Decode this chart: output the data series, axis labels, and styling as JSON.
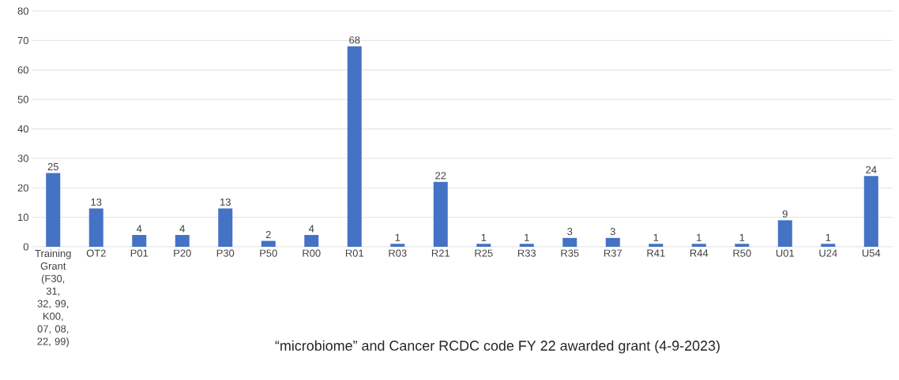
{
  "chart_data": {
    "type": "bar",
    "title": "“microbiome” and Cancer RCDC code FY 22 awarded grant  (4-9-2023)",
    "categories": [
      "Training Grant (F30, 31, 32, 99, K00, 07, 08, 22, 99)",
      "OT2",
      "P01",
      "P20",
      "P30",
      "P50",
      "R00",
      "R01",
      "R03",
      "R21",
      "R25",
      "R33",
      "R35",
      "R37",
      "R41",
      "R44",
      "R50",
      "U01",
      "U24",
      "U54"
    ],
    "values": [
      25,
      13,
      4,
      4,
      13,
      2,
      4,
      68,
      1,
      22,
      1,
      1,
      3,
      3,
      1,
      1,
      1,
      9,
      1,
      24
    ],
    "color": "#4472c4",
    "ylim": [
      0,
      80
    ],
    "yticks": [
      0,
      10,
      20,
      30,
      40,
      50,
      60,
      70,
      80
    ],
    "grid": "y",
    "data_labels": true
  }
}
